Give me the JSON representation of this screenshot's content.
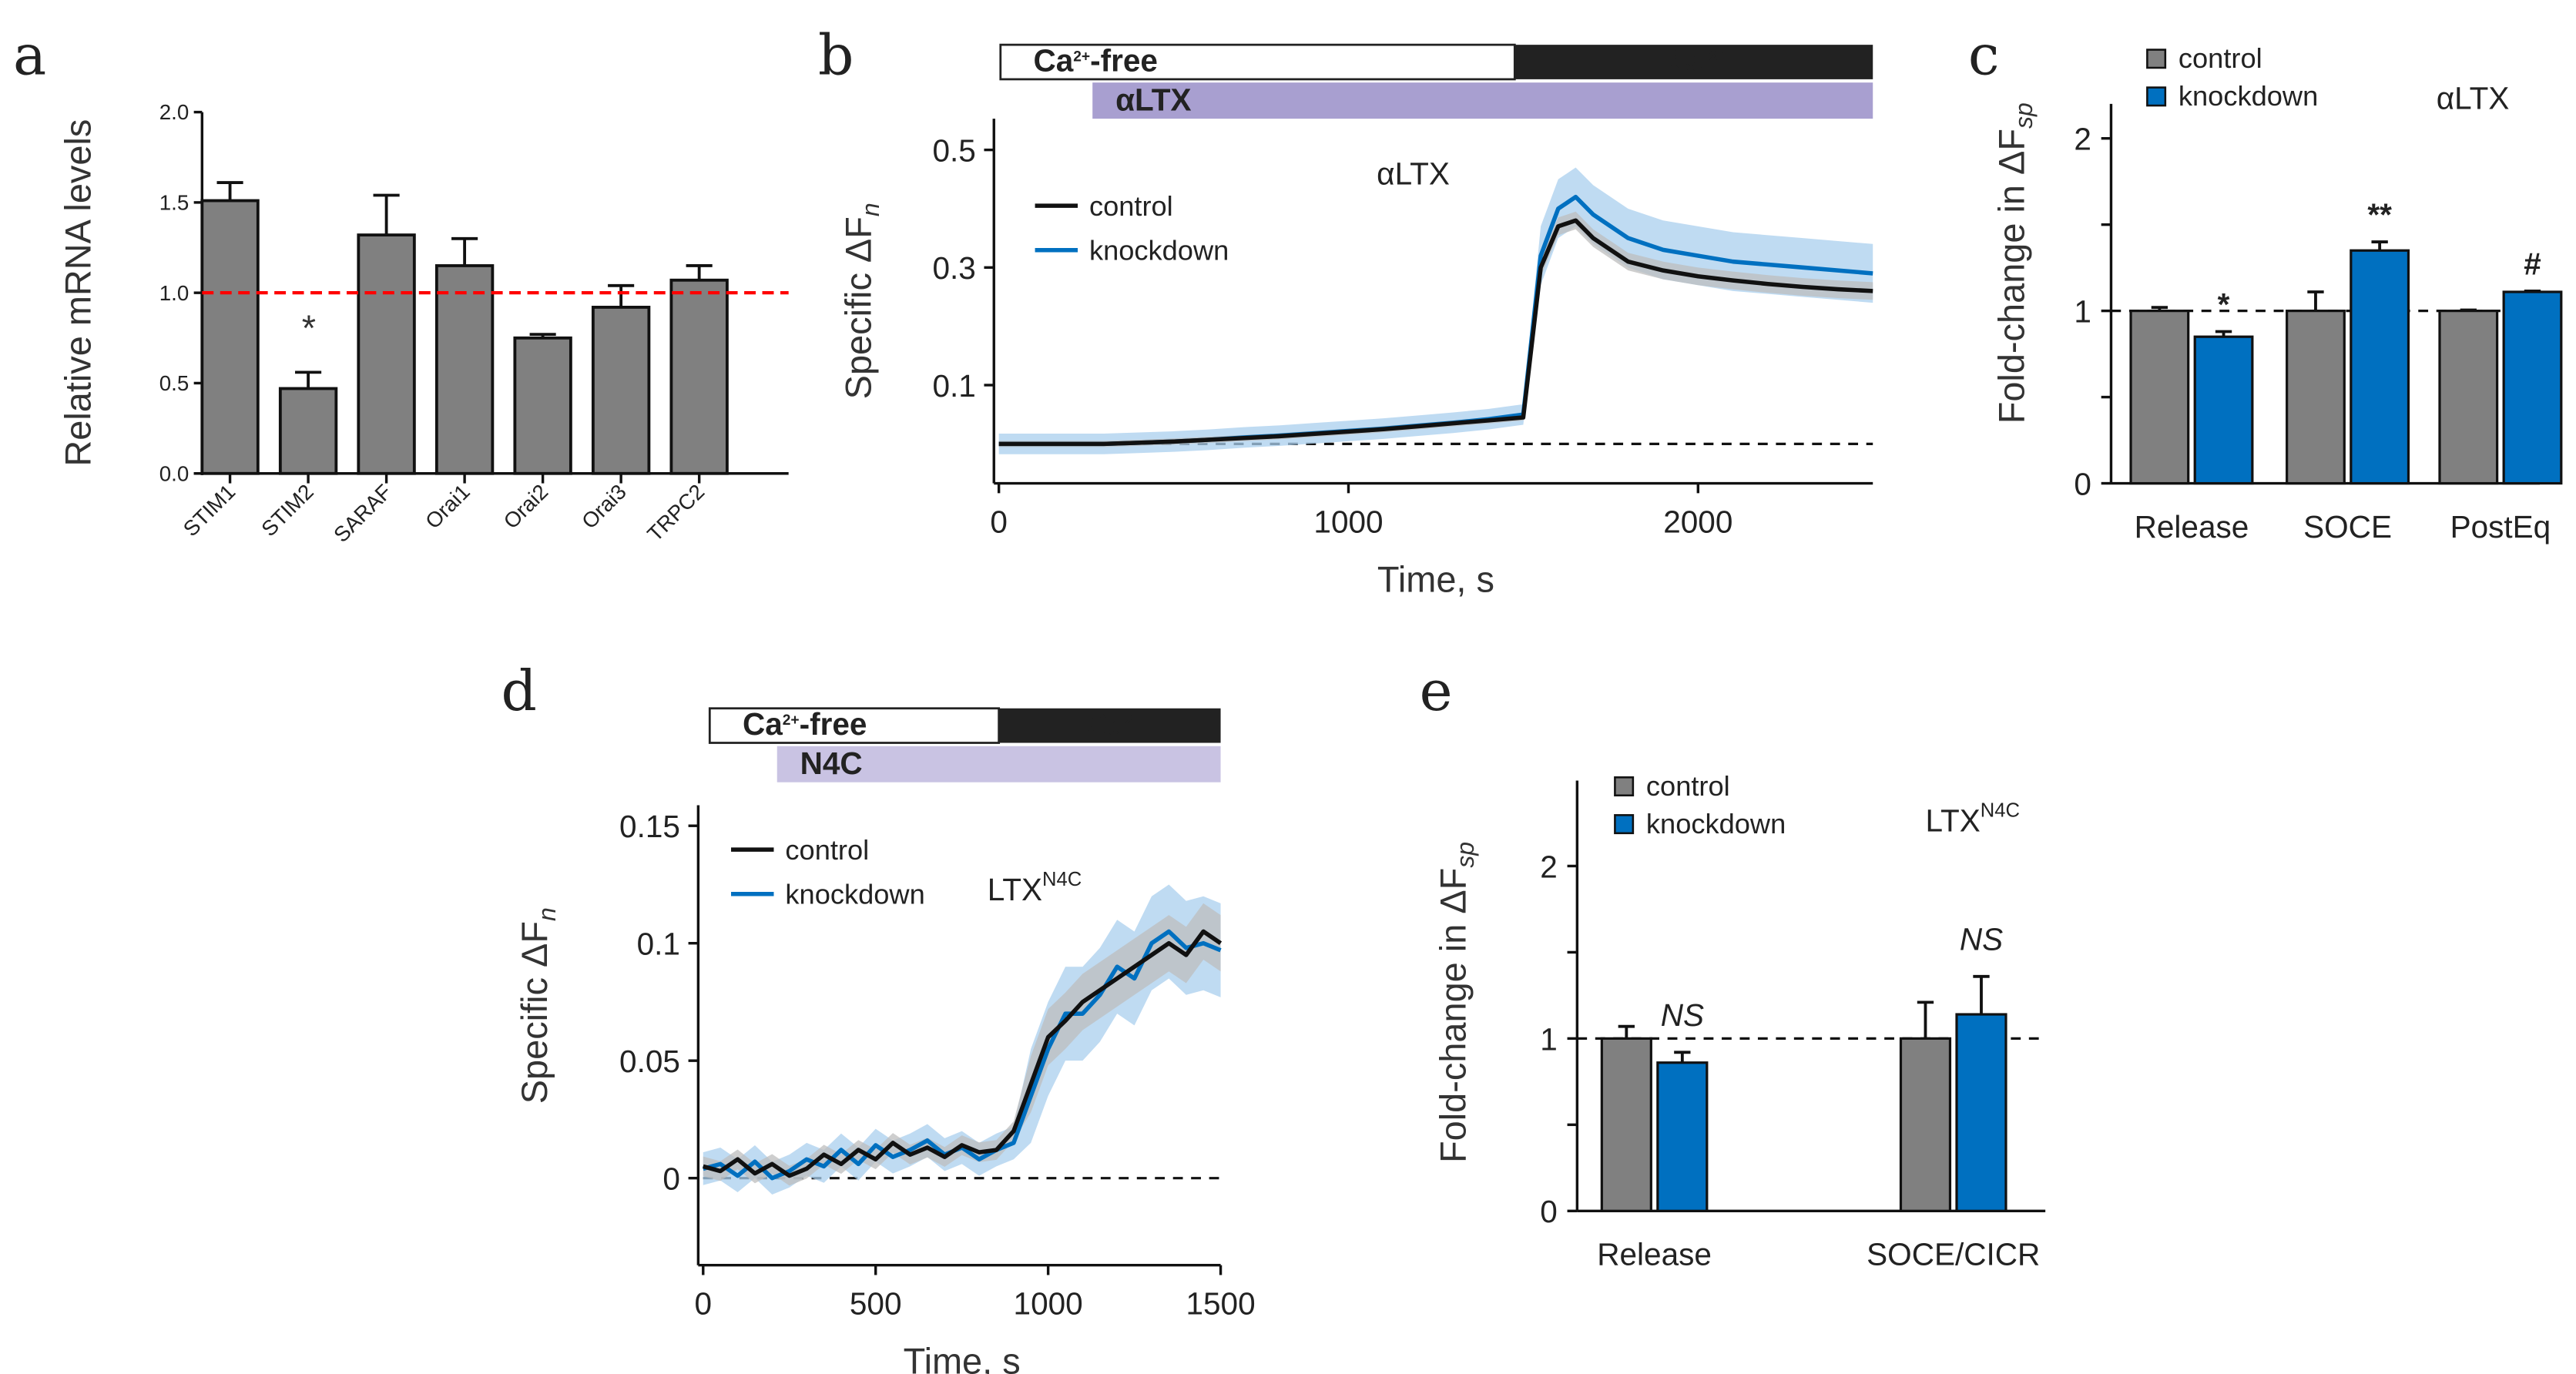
{
  "panel_letters": [
    "a",
    "b",
    "c",
    "d",
    "e"
  ],
  "colors": {
    "control": "#808080",
    "knockdown": "#0070c0",
    "knockdown_band": "#a9cfee",
    "control_band": "#bdbdbd",
    "ref_line_a": "#ff0000",
    "ltx_bar": "#a89fd0",
    "n4c_bar": "#c9c3e3"
  },
  "legend": {
    "control": "control",
    "knockdown": "knockdown"
  },
  "solution_bar": {
    "ca": "Ca",
    "sup": "2+",
    "free_suffix": "-free",
    "altx": "αLTX",
    "n4c": "N4C"
  },
  "chart_data": [
    {
      "id": "a",
      "type": "bar",
      "title": "",
      "ylabel": "Relative mRNA levels",
      "xlabel": "",
      "categories": [
        "STIM1",
        "STIM2",
        "SARAF",
        "Orai1",
        "Orai2",
        "Orai3",
        "TRPC2"
      ],
      "values": [
        1.51,
        0.47,
        1.32,
        1.15,
        0.75,
        0.92,
        1.07
      ],
      "errors": [
        0.1,
        0.09,
        0.22,
        0.15,
        0.02,
        0.12,
        0.08
      ],
      "annotations": [
        {
          "category": "STIM2",
          "text": "*"
        }
      ],
      "ref_line": 1.0,
      "ylim": [
        0,
        2
      ],
      "yticks": [
        "0.0",
        "0.5",
        "1.0",
        "1.5",
        "2.0"
      ]
    },
    {
      "id": "b",
      "type": "line",
      "title": "αLTX",
      "xlabel": "Time, s",
      "ylabel_main": "Specific ΔF",
      "ylabel_sub": "n",
      "xlim": [
        0,
        2500
      ],
      "ylim": [
        -0.065,
        0.55
      ],
      "xticks": [
        0,
        1000,
        2000
      ],
      "yticks": [
        0.1,
        0.3,
        0.5
      ],
      "ref_line": 0,
      "x": [
        0,
        100,
        200,
        300,
        400,
        500,
        600,
        700,
        800,
        900,
        1000,
        1100,
        1200,
        1300,
        1400,
        1500,
        1550,
        1600,
        1650,
        1700,
        1800,
        1900,
        2000,
        2100,
        2200,
        2300,
        2400,
        2500
      ],
      "series": [
        {
          "name": "control",
          "values": [
            0,
            0,
            0,
            0,
            0.002,
            0.004,
            0.007,
            0.01,
            0.013,
            0.017,
            0.021,
            0.025,
            0.03,
            0.035,
            0.04,
            0.045,
            0.3,
            0.37,
            0.38,
            0.35,
            0.31,
            0.295,
            0.285,
            0.278,
            0.272,
            0.267,
            0.263,
            0.26
          ],
          "sem": 0.015
        },
        {
          "name": "knockdown",
          "values": [
            0,
            0,
            0,
            0,
            0.002,
            0.004,
            0.007,
            0.011,
            0.014,
            0.018,
            0.022,
            0.026,
            0.031,
            0.036,
            0.042,
            0.05,
            0.32,
            0.4,
            0.42,
            0.39,
            0.35,
            0.33,
            0.32,
            0.31,
            0.305,
            0.3,
            0.295,
            0.29
          ],
          "sem": 0.05
        }
      ]
    },
    {
      "id": "c",
      "type": "bar",
      "title": "αLTX",
      "ylabel_main": "Fold-change in ΔF",
      "ylabel_sub": "sp",
      "xlabel": "",
      "categories": [
        "Release",
        "SOCE",
        "PostEq"
      ],
      "series": [
        {
          "name": "control",
          "values": [
            1.0,
            1.0,
            1.0
          ],
          "errors": [
            0.02,
            0.11,
            0.005
          ]
        },
        {
          "name": "knockdown",
          "values": [
            0.85,
            1.35,
            1.11
          ],
          "errors": [
            0.03,
            0.05,
            0.005
          ]
        }
      ],
      "annotations": [
        "*",
        "**",
        "#"
      ],
      "ref_line": 1,
      "ylim": [
        0,
        2.2
      ],
      "yticks": [
        0,
        1,
        2
      ],
      "legend": "top-left"
    },
    {
      "id": "d",
      "type": "line",
      "title": "LTX",
      "title_sup": "N4C",
      "xlabel": "Time, s",
      "ylabel_main": "Specific ΔF",
      "ylabel_sub": "n",
      "xlim": [
        0,
        1500
      ],
      "ylim": [
        -0.037,
        0.15
      ],
      "xticks": [
        0,
        500,
        1000,
        1500
      ],
      "yticks": [
        0,
        0.05,
        0.1,
        0.15
      ],
      "ytick_labels": [
        "0",
        "0.05",
        "0.1",
        "0.15"
      ],
      "ref_line": 0,
      "x": [
        0,
        50,
        100,
        150,
        200,
        250,
        300,
        350,
        400,
        450,
        500,
        550,
        600,
        650,
        700,
        750,
        800,
        850,
        900,
        950,
        1000,
        1050,
        1100,
        1150,
        1200,
        1250,
        1300,
        1350,
        1400,
        1450,
        1500
      ],
      "series": [
        {
          "name": "control",
          "values": [
            0.005,
            0.003,
            0.008,
            0.002,
            0.006,
            0.001,
            0.004,
            0.01,
            0.006,
            0.012,
            0.008,
            0.015,
            0.01,
            0.013,
            0.009,
            0.014,
            0.011,
            0.012,
            0.02,
            0.04,
            0.06,
            0.067,
            0.075,
            0.08,
            0.085,
            0.09,
            0.095,
            0.1,
            0.095,
            0.105,
            0.1
          ],
          "sem": 0.012
        },
        {
          "name": "knockdown",
          "values": [
            0.004,
            0.006,
            0.001,
            0.007,
            0,
            0.003,
            0.008,
            0.005,
            0.012,
            0.006,
            0.014,
            0.009,
            0.012,
            0.016,
            0.01,
            0.013,
            0.008,
            0.012,
            0.015,
            0.035,
            0.055,
            0.07,
            0.07,
            0.078,
            0.09,
            0.085,
            0.1,
            0.105,
            0.098,
            0.1,
            0.097
          ],
          "sem": 0.02
        }
      ]
    },
    {
      "id": "e",
      "type": "bar",
      "title": "LTX",
      "title_sup": "N4C",
      "ylabel_main": "Fold-change in ΔF",
      "ylabel_sub": "sp",
      "xlabel": "",
      "categories": [
        "Release",
        "SOCE/CICR"
      ],
      "series": [
        {
          "name": "control",
          "values": [
            1.0,
            1.0
          ],
          "errors": [
            0.07,
            0.21
          ]
        },
        {
          "name": "knockdown",
          "values": [
            0.86,
            1.14
          ],
          "errors": [
            0.06,
            0.22
          ]
        }
      ],
      "annotations": [
        "NS",
        "NS"
      ],
      "ref_line": 1,
      "ylim": [
        0,
        2.5
      ],
      "yticks": [
        0,
        1,
        2
      ],
      "legend": "top-left"
    }
  ]
}
